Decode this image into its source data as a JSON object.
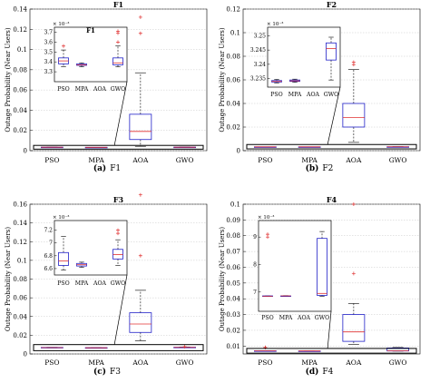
{
  "chart_data": [
    {
      "panel": "a",
      "type": "boxplot",
      "title": "F1",
      "caption_letter": "(a)",
      "caption_text": "F1",
      "ylabel": "Outage Probability (Near Users)",
      "categories": [
        "PSO",
        "MPA",
        "AOA",
        "GWO"
      ],
      "ylim": [
        0,
        0.14
      ],
      "yticks": [
        0,
        0.02,
        0.04,
        0.06,
        0.08,
        0.1,
        0.12,
        0.14
      ],
      "ytick_labels": [
        "0",
        "0.02",
        "0.04",
        "0.06",
        "0.08",
        "0.1",
        "0.12",
        "0.14"
      ],
      "grid": true,
      "boxes": [
        {
          "min": 0.0033,
          "q1": 0.00335,
          "median": 0.0034,
          "q3": 0.00345,
          "max": 0.0035,
          "outliers": []
        },
        {
          "min": 0.0033,
          "q1": 0.0033,
          "median": 0.0033,
          "q3": 0.0033,
          "max": 0.0033,
          "outliers": []
        },
        {
          "min": 0.0043,
          "q1": 0.011,
          "median": 0.019,
          "q3": 0.036,
          "max": 0.077,
          "outliers": [
            0.116,
            0.132
          ]
        },
        {
          "min": 0.0033,
          "q1": 0.0033,
          "median": 0.0034,
          "q3": 0.0035,
          "max": 0.0036,
          "outliers": []
        }
      ],
      "inset": {
        "title": "F1",
        "exponent_label": "× 10⁻³",
        "ylim": [
          3.2,
          3.75
        ],
        "yticks": [
          3.3,
          3.4,
          3.5,
          3.6,
          3.7
        ],
        "ytick_labels": [
          "3.3",
          "3.4",
          "3.5",
          "3.6",
          "3.7"
        ],
        "categories": [
          "PSO",
          "MPA",
          "AOA",
          "GWO"
        ],
        "boxes": [
          {
            "min": 3.35,
            "q1": 3.38,
            "median": 3.41,
            "q3": 3.44,
            "max": 3.52,
            "outliers": [
              3.56
            ]
          },
          {
            "min": 3.35,
            "q1": 3.365,
            "median": 3.37,
            "q3": 3.38,
            "max": 3.39,
            "outliers": []
          },
          null,
          {
            "min": 3.35,
            "q1": 3.37,
            "median": 3.39,
            "q3": 3.44,
            "max": 3.56,
            "outliers": [
              3.6,
              3.69,
              3.71
            ]
          }
        ]
      }
    },
    {
      "panel": "b",
      "type": "boxplot",
      "title": "F2",
      "caption_letter": "(b)",
      "caption_text": "F2",
      "ylabel": "Outage Probability (Near Users)",
      "categories": [
        "PSO",
        "MPA",
        "AOA",
        "GWO"
      ],
      "ylim": [
        0,
        0.12
      ],
      "yticks": [
        0,
        0.02,
        0.04,
        0.06,
        0.08,
        0.1,
        0.12
      ],
      "ytick_labels": [
        "0",
        "0.02",
        "0.04",
        "0.06",
        "0.08",
        "0.1",
        "0.12"
      ],
      "grid": true,
      "boxes": [
        {
          "min": 0.00323,
          "q1": 0.00323,
          "median": 0.00323,
          "q3": 0.00323,
          "max": 0.00323,
          "outliers": []
        },
        {
          "min": 0.00323,
          "q1": 0.00323,
          "median": 0.00323,
          "q3": 0.00323,
          "max": 0.00323,
          "outliers": []
        },
        {
          "min": 0.007,
          "q1": 0.02,
          "median": 0.028,
          "q3": 0.04,
          "max": 0.069,
          "outliers": [
            0.073,
            0.075
          ]
        },
        {
          "min": 0.0032,
          "q1": 0.00323,
          "median": 0.00325,
          "q3": 0.0033,
          "max": 0.0034,
          "outliers": []
        }
      ],
      "inset": {
        "title": "",
        "exponent_label": "× 10⁻³",
        "ylim": [
          3.232,
          3.253
        ],
        "yticks": [
          3.235,
          3.24,
          3.245,
          3.25
        ],
        "ytick_labels": [
          "3.235",
          "3.24",
          "3.245",
          "3.25"
        ],
        "categories": [
          "PSO",
          "MPA",
          "AOA",
          "GWO"
        ],
        "boxes": [
          {
            "min": 3.2335,
            "q1": 3.2338,
            "median": 3.234,
            "q3": 3.2343,
            "max": 3.2347,
            "outliers": []
          },
          {
            "min": 3.2337,
            "q1": 3.234,
            "median": 3.2342,
            "q3": 3.2345,
            "max": 3.2348,
            "outliers": []
          },
          null,
          {
            "min": 3.2345,
            "q1": 3.2415,
            "median": 3.2455,
            "q3": 3.2475,
            "max": 3.2495,
            "outliers": []
          }
        ]
      }
    },
    {
      "panel": "c",
      "type": "boxplot",
      "title": "F3",
      "caption_letter": "(c)",
      "caption_text": "F3",
      "ylabel": "Outage Probability (Near Users)",
      "categories": [
        "PSO",
        "MPA",
        "AOA",
        "GWO"
      ],
      "ylim": [
        0,
        0.16
      ],
      "yticks": [
        0,
        0.02,
        0.04,
        0.06,
        0.08,
        0.1,
        0.12,
        0.14,
        0.16
      ],
      "ytick_labels": [
        "0",
        "0.02",
        "0.04",
        "0.06",
        "0.08",
        "0.1",
        "0.12",
        "0.14",
        "0.16"
      ],
      "grid": true,
      "boxes": [
        {
          "min": 0.0065,
          "q1": 0.0067,
          "median": 0.0068,
          "q3": 0.007,
          "max": 0.0071,
          "outliers": []
        },
        {
          "min": 0.0066,
          "q1": 0.0066,
          "median": 0.0066,
          "q3": 0.0067,
          "max": 0.0067,
          "outliers": []
        },
        {
          "min": 0.014,
          "q1": 0.023,
          "median": 0.032,
          "q3": 0.044,
          "max": 0.068,
          "outliers": [
            0.105,
            0.17
          ]
        },
        {
          "min": 0.0066,
          "q1": 0.0068,
          "median": 0.007,
          "q3": 0.0072,
          "max": 0.0075,
          "outliers": [
            0.0078
          ]
        }
      ],
      "inset": {
        "title": "",
        "exponent_label": "× 10⁻³",
        "ylim": [
          6.5,
          7.35
        ],
        "yticks": [
          6.6,
          6.8,
          7,
          7.2
        ],
        "ytick_labels": [
          "6.6",
          "6.8",
          "7",
          "7.2"
        ],
        "categories": [
          "PSO",
          "MPA",
          "AOA",
          "GWO"
        ],
        "boxes": [
          {
            "min": 6.58,
            "q1": 6.65,
            "median": 6.72,
            "q3": 6.85,
            "max": 7.1,
            "outliers": []
          },
          {
            "min": 6.62,
            "q1": 6.64,
            "median": 6.66,
            "q3": 6.68,
            "max": 6.7,
            "outliers": []
          },
          null,
          {
            "min": 6.65,
            "q1": 6.75,
            "median": 6.82,
            "q3": 6.9,
            "max": 7.05,
            "outliers": [
              7.15,
              7.2
            ]
          }
        ]
      }
    },
    {
      "panel": "d",
      "type": "boxplot",
      "title": "F4",
      "caption_letter": "(d)",
      "caption_text": "F4",
      "ylabel": "Outage Probability (Near Users)",
      "categories": [
        "PSO",
        "MPA",
        "AOA",
        "GWO"
      ],
      "ylim": [
        0.005,
        0.1
      ],
      "yticks": [
        0.01,
        0.02,
        0.03,
        0.04,
        0.05,
        0.06,
        0.07,
        0.08,
        0.09,
        0.1
      ],
      "ytick_labels": [
        "0.01",
        "0.02",
        "0.03",
        "0.04",
        "0.05",
        "0.06",
        "0.07",
        "0.08",
        "0.09",
        "0.1"
      ],
      "grid": true,
      "boxes": [
        {
          "min": 0.0068,
          "q1": 0.0069,
          "median": 0.007,
          "q3": 0.007,
          "max": 0.0071,
          "outliers": [
            0.009,
            0.0092
          ]
        },
        {
          "min": 0.0068,
          "q1": 0.0068,
          "median": 0.0069,
          "q3": 0.0069,
          "max": 0.0069,
          "outliers": []
        },
        {
          "min": 0.011,
          "q1": 0.013,
          "median": 0.019,
          "q3": 0.03,
          "max": 0.037,
          "outliers": [
            0.056,
            0.1
          ]
        },
        {
          "min": 0.0068,
          "q1": 0.0069,
          "median": 0.007,
          "q3": 0.0088,
          "max": 0.0091,
          "outliers": []
        }
      ],
      "inset": {
        "title": "",
        "exponent_label": "× 10⁻³",
        "ylim": [
          6.3,
          9.6
        ],
        "yticks": [
          7,
          8,
          9
        ],
        "ytick_labels": [
          "7",
          "8",
          "9"
        ],
        "categories": [
          "PSO",
          "MPA",
          "AOA",
          "GWO"
        ],
        "boxes": [
          {
            "min": 6.85,
            "q1": 6.85,
            "median": 6.85,
            "q3": 6.86,
            "max": 6.86,
            "outliers": [
              9.0,
              9.1
            ]
          },
          {
            "min": 6.85,
            "q1": 6.85,
            "median": 6.86,
            "q3": 6.86,
            "max": 6.87,
            "outliers": []
          },
          null,
          {
            "min": 6.85,
            "q1": 6.88,
            "median": 6.95,
            "q3": 8.95,
            "max": 9.2,
            "outliers": []
          }
        ]
      }
    }
  ]
}
